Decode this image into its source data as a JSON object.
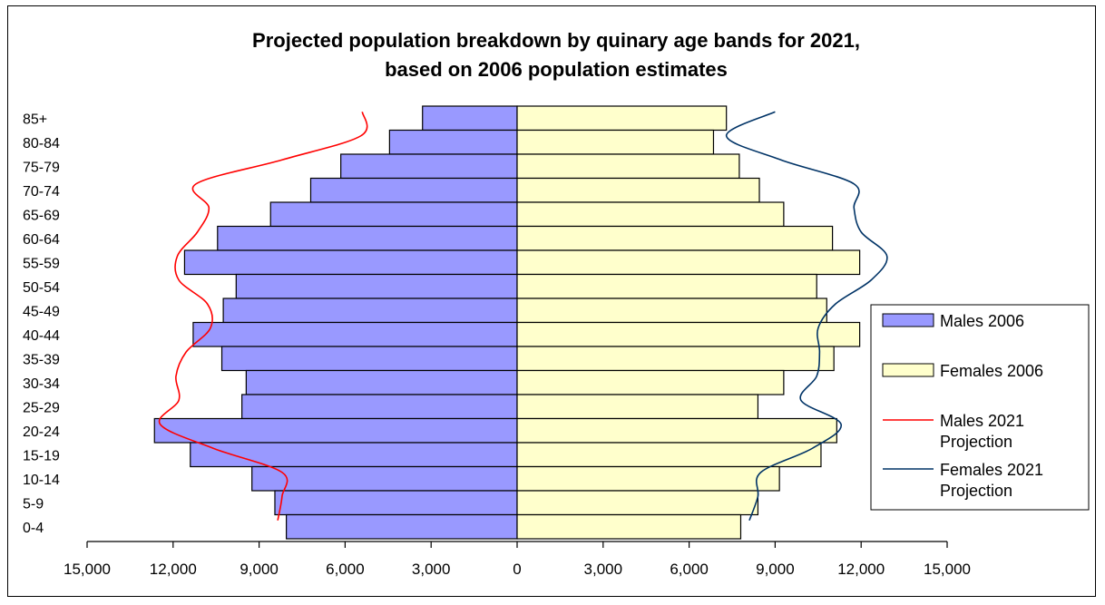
{
  "chart_data": {
    "type": "bar",
    "orientation": "horizontal",
    "title_lines": [
      "Projected population breakdown by quinary age bands for 2021,",
      "based on 2006 population estimates"
    ],
    "categories": [
      "85+",
      "80-84",
      "75-79",
      "70-74",
      "65-69",
      "60-64",
      "55-59",
      "50-54",
      "45-49",
      "40-44",
      "35-39",
      "30-34",
      "25-29",
      "20-24",
      "15-19",
      "10-14",
      "5-9",
      "0-4"
    ],
    "x_ticks": [
      "15,000",
      "12,000",
      "9,000",
      "6,000",
      "3,000",
      "0",
      "3,000",
      "6,000",
      "9,000",
      "12,000",
      "15,000"
    ],
    "xlim": [
      -15000,
      15000
    ],
    "grid": false,
    "legend_position": "right",
    "series": [
      {
        "name": "Males 2006",
        "kind": "bar",
        "side": "left",
        "color": "#9999ff",
        "values": [
          3300,
          4450,
          6150,
          7200,
          8600,
          10450,
          11600,
          9800,
          10250,
          11300,
          10300,
          9450,
          9600,
          12650,
          11400,
          9250,
          8450,
          8050
        ]
      },
      {
        "name": "Females 2006",
        "kind": "bar",
        "side": "right",
        "color": "#ffffcc",
        "values": [
          7300,
          6850,
          7750,
          8450,
          9300,
          11000,
          11950,
          10450,
          10800,
          11950,
          11050,
          9300,
          8400,
          11150,
          10600,
          9150,
          8400,
          7800
        ]
      },
      {
        "name": "Males 2021 Projection",
        "kind": "line",
        "side": "left",
        "color": "#ff0000",
        "values": [
          5400,
          5450,
          8200,
          11200,
          10750,
          11150,
          11850,
          11800,
          10800,
          10700,
          11550,
          11900,
          11800,
          12450,
          10600,
          8200,
          8200,
          8350
        ]
      },
      {
        "name": "Females 2021 Projection",
        "kind": "line",
        "side": "right",
        "color": "#003366",
        "values": [
          9000,
          7300,
          9200,
          11750,
          11750,
          12000,
          12900,
          12350,
          11100,
          10500,
          10550,
          10450,
          9900,
          11300,
          10300,
          8500,
          8400,
          8100
        ]
      }
    ],
    "legend": [
      {
        "label_lines": [
          "Males 2006"
        ],
        "kind": "bar",
        "color": "#9999ff"
      },
      {
        "label_lines": [
          "Females 2006"
        ],
        "kind": "bar",
        "color": "#ffffcc"
      },
      {
        "label_lines": [
          "Males 2021",
          "Projection"
        ],
        "kind": "line",
        "color": "#ff0000"
      },
      {
        "label_lines": [
          "Females 2021",
          "Projection"
        ],
        "kind": "line",
        "color": "#003366"
      }
    ]
  }
}
